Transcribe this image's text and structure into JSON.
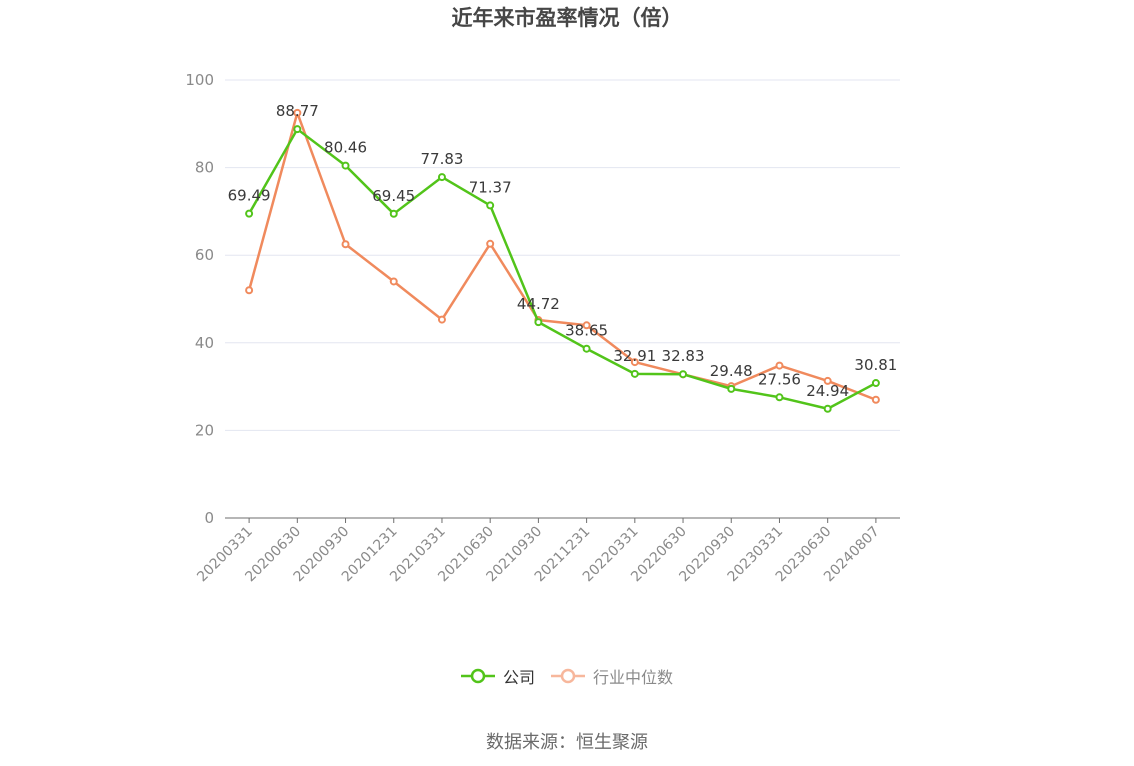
{
  "chart_data": {
    "type": "line",
    "title": "近年来市盈率情况（倍）",
    "categories": [
      "20200331",
      "20200630",
      "20200930",
      "20201231",
      "20210331",
      "20210630",
      "20210930",
      "20211231",
      "20220331",
      "20220630",
      "20220930",
      "20230331",
      "20230630",
      "20240807"
    ],
    "ylim": [
      0,
      100
    ],
    "yticks": [
      0,
      20,
      40,
      60,
      80,
      100
    ],
    "grid": true,
    "legend_position": "bottom-center",
    "series": [
      {
        "name": "公司",
        "color": "#52c41a",
        "values": [
          69.49,
          88.77,
          80.46,
          69.45,
          77.83,
          71.37,
          44.72,
          38.65,
          32.91,
          32.83,
          29.48,
          27.56,
          24.94,
          30.81
        ],
        "labels": [
          "69.49",
          "88.77",
          "80.46",
          "69.45",
          "77.83",
          "71.37",
          "44.72",
          "38.65",
          "32.91",
          "32.83",
          "29.48",
          "27.56",
          "24.94",
          "30.81"
        ],
        "show_labels": true
      },
      {
        "name": "行业中位数",
        "color": "#f08a5d",
        "legend_color": "#f7b79c",
        "values": [
          52.0,
          92.5,
          62.5,
          54.0,
          45.3,
          62.6,
          45.2,
          44.0,
          35.6,
          32.8,
          30.1,
          34.8,
          31.3,
          27.0
        ],
        "show_labels": false
      }
    ]
  },
  "source_text": "数据来源：恒生聚源"
}
